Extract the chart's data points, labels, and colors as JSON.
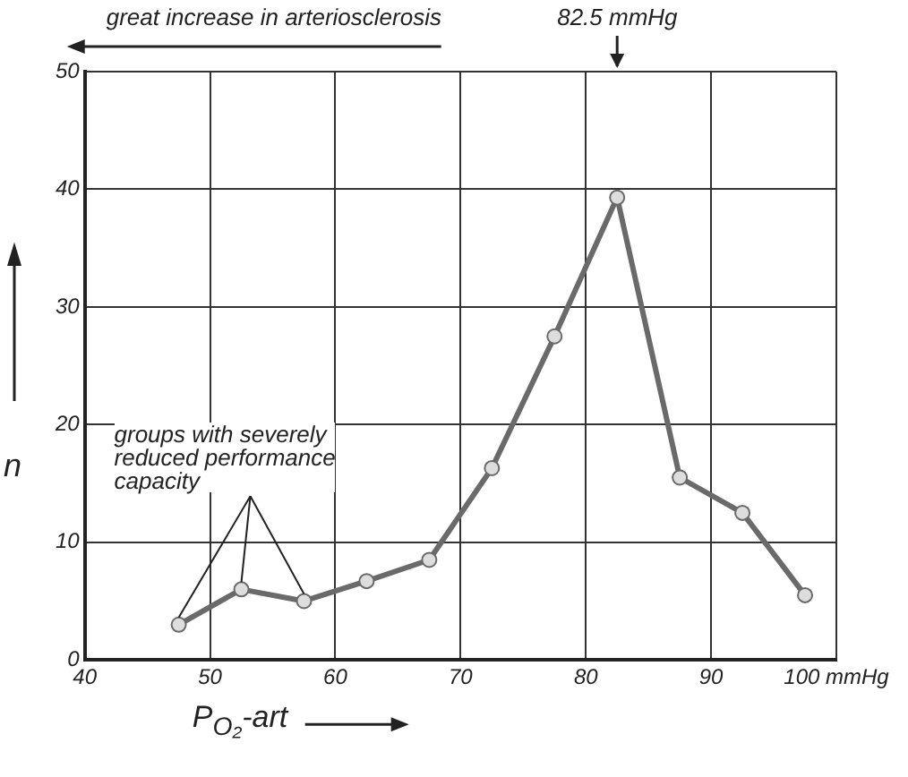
{
  "chart_data": {
    "type": "line",
    "xlabel": "P$_{O₂}$-art",
    "ylabel": "n",
    "x": [
      47.5,
      52.5,
      57.5,
      62.5,
      67.5,
      72.5,
      77.5,
      82.5,
      87.5,
      92.5,
      97.5
    ],
    "series": [
      {
        "color": "#6a6a6a",
        "values": [
          3,
          6,
          5,
          6.7,
          8.5,
          16.3,
          27.5,
          39.3,
          15.5,
          12.5,
          5.5
        ]
      }
    ],
    "xlim": [
      40,
      100
    ],
    "xticks": [
      40,
      50,
      60,
      70,
      80,
      90,
      {
        "value": 100,
        "label": "100 mmHg"
      }
    ],
    "ylim": [
      0,
      50
    ],
    "yticks": [
      0,
      10,
      20,
      30,
      40,
      50
    ],
    "grid": true,
    "legend": false,
    "marker": "circle",
    "line_style": "solid",
    "annotations": [
      "great increase in arteriosclerosis",
      "82.5 mmHg",
      {
        "text": "groups with severely reduced performance capacity",
        "x": 52.5,
        "y": 6
      }
    ]
  }
}
